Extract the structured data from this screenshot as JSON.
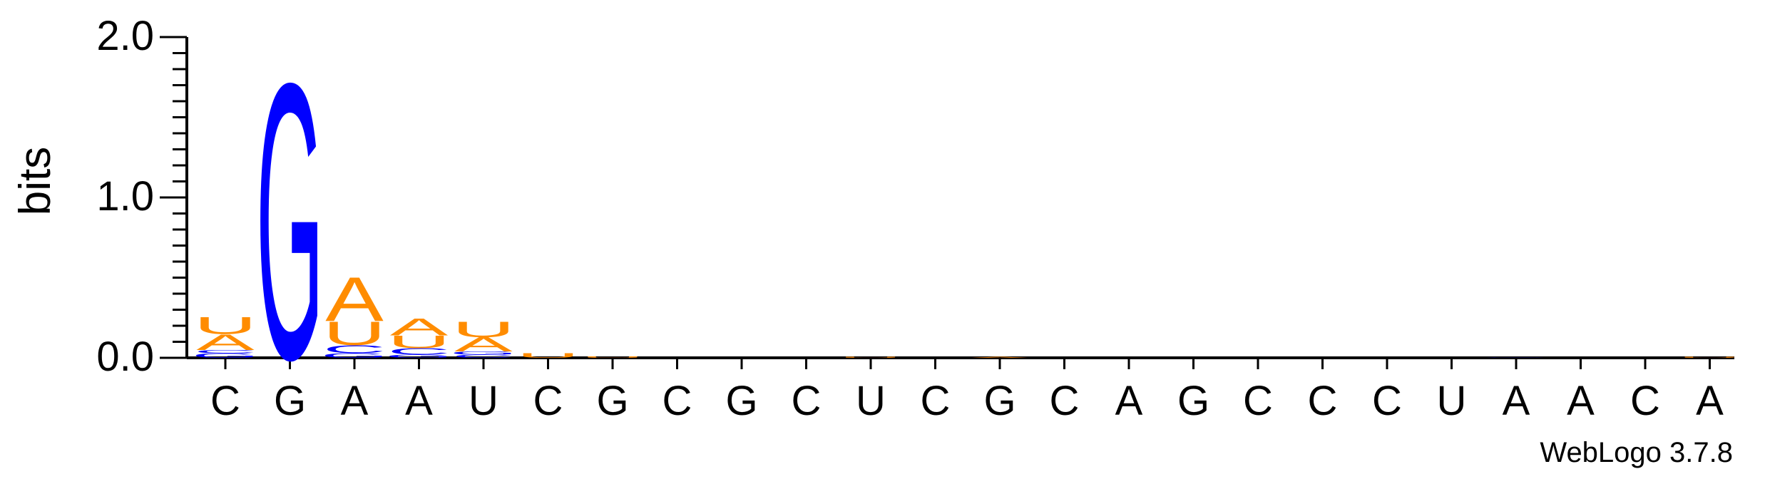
{
  "chart_data": {
    "type": "sequence-logo",
    "ylabel": "bits",
    "ylim": [
      0,
      2.0
    ],
    "yticks": [
      "0.0",
      "1.0",
      "2.0"
    ],
    "positions": [
      "C",
      "G",
      "A",
      "A",
      "U",
      "C",
      "G",
      "C",
      "G",
      "C",
      "U",
      "C",
      "G",
      "C",
      "A",
      "G",
      "C",
      "C",
      "C",
      "U",
      "A",
      "A",
      "C",
      "A"
    ],
    "stacks": [
      [
        {
          "letter": "G",
          "bits": 0.03
        },
        {
          "letter": "C",
          "bits": 0.02
        },
        {
          "letter": "A",
          "bits": 0.1
        },
        {
          "letter": "U",
          "bits": 0.11
        }
      ],
      [
        {
          "letter": "G",
          "bits": 1.76
        }
      ],
      [
        {
          "letter": "G",
          "bits": 0.03
        },
        {
          "letter": "C",
          "bits": 0.05
        },
        {
          "letter": "U",
          "bits": 0.15
        },
        {
          "letter": "A",
          "bits": 0.28
        }
      ],
      [
        {
          "letter": "G",
          "bits": 0.02
        },
        {
          "letter": "C",
          "bits": 0.04
        },
        {
          "letter": "U",
          "bits": 0.08
        },
        {
          "letter": "A",
          "bits": 0.11
        }
      ],
      [
        {
          "letter": "C",
          "bits": 0.02
        },
        {
          "letter": "G",
          "bits": 0.02
        },
        {
          "letter": "A",
          "bits": 0.09
        },
        {
          "letter": "U",
          "bits": 0.1
        }
      ],
      [
        {
          "letter": "U",
          "bits": 0.03
        }
      ],
      [
        {
          "letter": "U",
          "bits": 0.01
        }
      ],
      [],
      [],
      [],
      [
        {
          "letter": "U",
          "bits": 0.005
        }
      ],
      [],
      [
        {
          "letter": "A",
          "bits": 0.005
        }
      ],
      [],
      [],
      [],
      [],
      [],
      [],
      [],
      [
        {
          "letter": "G",
          "bits": 0.003
        }
      ],
      [],
      [],
      [
        {
          "letter": "U",
          "bits": 0.005
        }
      ]
    ],
    "colors": {
      "A": "#ff8c00",
      "U": "#ff8c00",
      "G": "#0000ff",
      "C": "#0000ff"
    },
    "grid": false,
    "credit": "WebLogo 3.7.8"
  }
}
